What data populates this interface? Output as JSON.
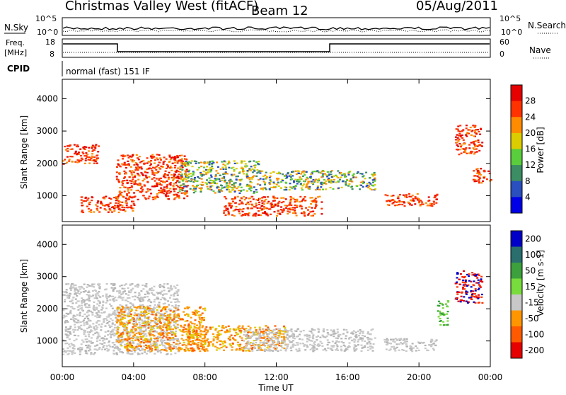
{
  "header": {
    "station": "Christmas Valley West (fitACF)",
    "beam": "Beam 12",
    "date": "05/Aug/2011"
  },
  "summary": {
    "nsky_label": "N.Sky",
    "nsky_ticks": [
      "10^5",
      "10^0"
    ],
    "nsearch_label": "N.Search",
    "freq_label": "Freq.",
    "freq_unit": "[MHz]",
    "freq_ticks": [
      "18",
      "8"
    ],
    "nave_label": "Nave",
    "nave_ticks": [
      "60",
      "0"
    ],
    "cpid_label": "CPID",
    "cpid_text": "normal (fast) 151 IF"
  },
  "x_axis": {
    "label": "Time UT",
    "ticks": [
      "00:00",
      "04:00",
      "08:00",
      "12:00",
      "16:00",
      "20:00",
      "00:00"
    ],
    "range_hours": [
      0,
      24
    ]
  },
  "colors": {
    "power": [
      "#0000e6",
      "#2a4fbf",
      "#3c8c64",
      "#5acd3c",
      "#dccd00",
      "#ff8c00",
      "#ff3200",
      "#e60000"
    ],
    "velocity": [
      "#0000c8",
      "#2a6e6e",
      "#3ca03c",
      "#78dc3c",
      "#c8c8c8",
      "#ff9600",
      "#ff5a00",
      "#e60000"
    ]
  },
  "chart_data": [
    {
      "type": "heatmap",
      "name": "power",
      "ylabel": "Slant Range [km]",
      "yticks": [
        1000,
        2000,
        3000,
        4000
      ],
      "ylim": [
        200,
        4600
      ],
      "colorbar_label": "Power [dB]",
      "colorbar_ticks": [
        "4",
        "8",
        "12",
        "16",
        "20",
        "24",
        "28"
      ],
      "colorbar_range": [
        0,
        32
      ],
      "regions": [
        {
          "t": [
            0.0,
            2.0
          ],
          "r": [
            2000,
            2600
          ],
          "level": "strong"
        },
        {
          "t": [
            1.0,
            4.0
          ],
          "r": [
            500,
            1000
          ],
          "level": "strong"
        },
        {
          "t": [
            3.0,
            7.0
          ],
          "r": [
            900,
            2300
          ],
          "level": "strong"
        },
        {
          "t": [
            6.5,
            11.0
          ],
          "r": [
            1100,
            2100
          ],
          "level": "medium"
        },
        {
          "t": [
            9.0,
            14.5
          ],
          "r": [
            400,
            1000
          ],
          "level": "strong"
        },
        {
          "t": [
            11.0,
            17.5
          ],
          "r": [
            1200,
            1800
          ],
          "level": "medium"
        },
        {
          "t": [
            18.0,
            21.0
          ],
          "r": [
            700,
            1100
          ],
          "level": "strong"
        },
        {
          "t": [
            22.0,
            23.5
          ],
          "r": [
            2300,
            3200
          ],
          "level": "strong"
        },
        {
          "t": [
            23.0,
            24.0
          ],
          "r": [
            1400,
            1900
          ],
          "level": "strong"
        }
      ]
    },
    {
      "type": "heatmap",
      "name": "velocity",
      "ylabel": "Slant Range [km]",
      "yticks": [
        1000,
        2000,
        3000,
        4000
      ],
      "ylim": [
        200,
        4600
      ],
      "colorbar_label": "Velocity [m s-1]",
      "colorbar_ticks": [
        "200",
        "100",
        "50",
        "15",
        "-15",
        "-50",
        "-100",
        "-200"
      ],
      "colorbar_range": [
        -250,
        250
      ],
      "regions": [
        {
          "t": [
            0.0,
            6.5
          ],
          "r": [
            600,
            2800
          ],
          "level": "grey"
        },
        {
          "t": [
            3.0,
            8.0
          ],
          "r": [
            700,
            2100
          ],
          "level": "orange"
        },
        {
          "t": [
            7.0,
            12.5
          ],
          "r": [
            700,
            1500
          ],
          "level": "orange"
        },
        {
          "t": [
            10.0,
            17.5
          ],
          "r": [
            700,
            1400
          ],
          "level": "grey"
        },
        {
          "t": [
            18.0,
            21.0
          ],
          "r": [
            700,
            1100
          ],
          "level": "grey"
        },
        {
          "t": [
            22.0,
            23.5
          ],
          "r": [
            2200,
            3200
          ],
          "level": "red"
        },
        {
          "t": [
            21.0,
            21.6
          ],
          "r": [
            1500,
            2300
          ],
          "level": "green"
        }
      ]
    }
  ]
}
